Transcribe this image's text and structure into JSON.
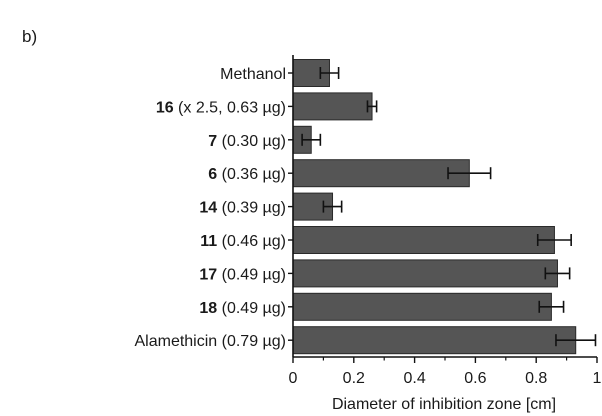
{
  "chart_data": {
    "type": "bar",
    "orientation": "horizontal",
    "panel_label": "b)",
    "xlabel": "Diameter of inhibition zone  [cm]",
    "xlim": [
      0,
      1
    ],
    "x_ticks": [
      "0",
      "0.2",
      "0.4",
      "0.6",
      "0.8",
      "1"
    ],
    "bar_color": "#555555",
    "categories": [
      {
        "bold": "",
        "rest": "Methanol"
      },
      {
        "bold": "16",
        "rest": " (x 2.5, 0.63 µg)"
      },
      {
        "bold": "7",
        "rest": " (0.30 µg)"
      },
      {
        "bold": "6",
        "rest": " (0.36 µg)"
      },
      {
        "bold": "14",
        "rest": " (0.39 µg)"
      },
      {
        "bold": "11",
        "rest": " (0.46 µg)"
      },
      {
        "bold": "17",
        "rest": " (0.49 µg)"
      },
      {
        "bold": "18",
        "rest": " (0.49 µg)"
      },
      {
        "bold": "",
        "rest": "Alamethicin (0.79 µg)"
      }
    ],
    "values": [
      0.12,
      0.26,
      0.06,
      0.58,
      0.13,
      0.86,
      0.87,
      0.85,
      0.93
    ],
    "errors": [
      0.03,
      0.015,
      0.03,
      0.07,
      0.03,
      0.055,
      0.04,
      0.04,
      0.065
    ]
  }
}
